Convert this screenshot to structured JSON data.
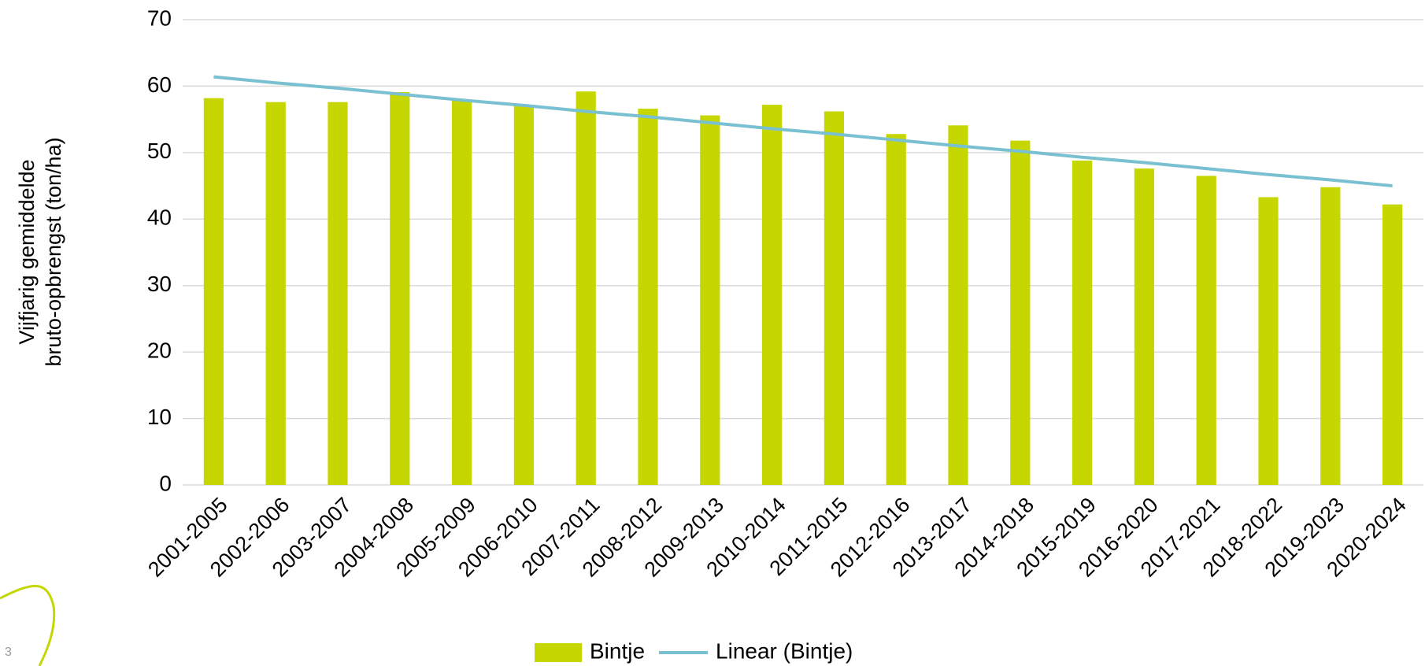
{
  "chart_data": {
    "type": "bar",
    "y_label": [
      "Vijfjarig gemiddelde",
      "bruto-opbrengst (ton/ha)"
    ],
    "categories": [
      "2001-2005",
      "2002-2006",
      "2003-2007",
      "2004-2008",
      "2005-2009",
      "2006-2010",
      "2007-2011",
      "2008-2012",
      "2009-2013",
      "2010-2014",
      "2011-2015",
      "2012-2016",
      "2013-2017",
      "2014-2018",
      "2015-2019",
      "2016-2020",
      "2017-2021",
      "2018-2022",
      "2019-2023",
      "2020-2024"
    ],
    "series": [
      {
        "name": "Bintje",
        "type": "bar",
        "color": "#c5d600",
        "values": [
          58.2,
          57.6,
          57.6,
          59.1,
          57.8,
          57.2,
          59.2,
          56.6,
          55.6,
          57.2,
          56.2,
          52.8,
          54.1,
          51.8,
          48.8,
          47.6,
          46.5,
          43.3,
          44.8,
          42.2
        ]
      },
      {
        "name": "Linear (Bintje)",
        "type": "line",
        "color": "#79c0d0",
        "values": [
          61.4,
          60.5,
          59.7,
          58.8,
          57.9,
          57.1,
          56.2,
          55.4,
          54.5,
          53.6,
          52.8,
          51.9,
          51.0,
          50.2,
          49.3,
          48.5,
          47.6,
          46.7,
          45.9,
          45.0
        ]
      }
    ],
    "ylim": [
      0,
      70
    ],
    "yticks": [
      0,
      10,
      20,
      30,
      40,
      50,
      60,
      70
    ],
    "grid": true,
    "legend": "bottom"
  },
  "slide_number": "3"
}
